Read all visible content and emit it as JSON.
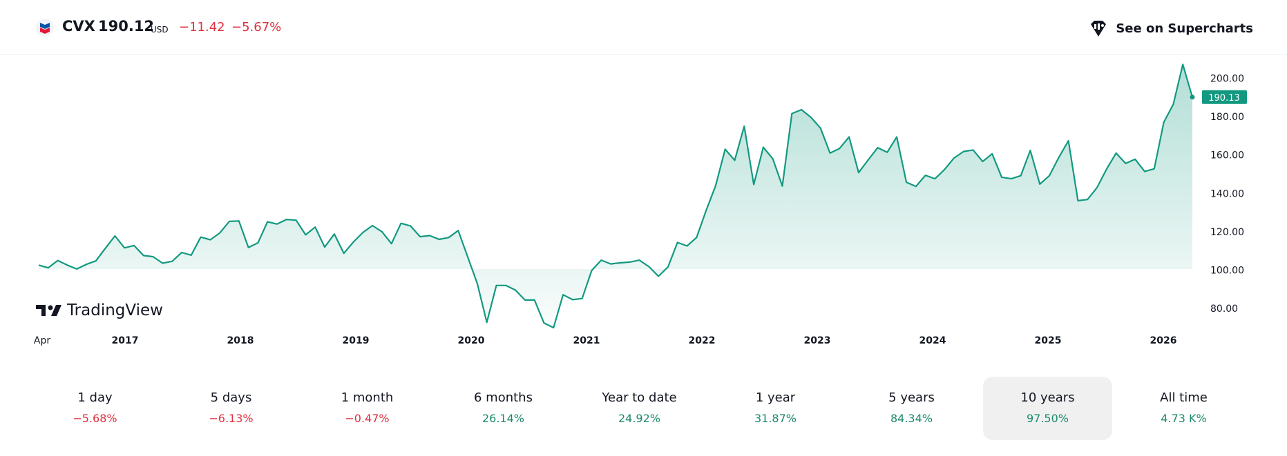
{
  "header": {
    "logo_icon": "chevron-logo-icon",
    "symbol": "CVX",
    "price": "190.12",
    "currency": "USD",
    "change": "−11.42",
    "change_pct": "−5.67%",
    "supercharts_label": "See on Supercharts",
    "supercharts_icon": "tradingview-supercharts-icon"
  },
  "colors": {
    "line": "#129980",
    "negative": "#e0313f",
    "positive": "#1a8a6b",
    "price_tag": "#129980",
    "active_period_bg": "#f0f0f0"
  },
  "chart_data": {
    "type": "area",
    "x_tick_labels": [
      "Apr",
      "2017",
      "2018",
      "2019",
      "2020",
      "2021",
      "2022",
      "2023",
      "2024",
      "2025",
      "2026"
    ],
    "y_tick_labels": [
      "200.00",
      "180.00",
      "160.00",
      "140.00",
      "120.00",
      "100.00",
      "80.00"
    ],
    "ylim": [
      70,
      212
    ],
    "last_price_label": "190.13",
    "watermark": "TradingView",
    "grid": false,
    "series": [
      {
        "values": [
          102.6,
          101.2,
          105.0,
          102.6,
          100.6,
          103.0,
          104.8,
          111.4,
          117.8,
          111.6,
          112.8,
          107.6,
          107.0,
          103.6,
          104.6,
          109.2,
          107.8,
          117.2,
          115.8,
          119.4,
          125.4,
          125.6,
          111.8,
          114.2,
          125.2,
          124.0,
          126.4,
          126.0,
          118.4,
          122.4,
          112.0,
          118.8,
          108.8,
          114.6,
          119.6,
          123.2,
          120.0,
          113.8,
          124.4,
          123.0,
          117.4,
          118.0,
          116.0,
          117.0,
          120.6,
          106.8,
          93.0,
          72.8,
          92.0,
          92.0,
          89.6,
          84.4,
          84.4,
          72.4,
          70.0,
          87.2,
          84.6,
          85.2,
          99.8,
          105.2,
          103.2,
          103.8,
          104.2,
          105.2,
          101.8,
          96.8,
          101.6,
          114.4,
          112.6,
          117.0,
          131.0,
          144.0,
          163.0,
          157.2,
          175.0,
          144.6,
          164.0,
          158.0,
          143.8,
          181.6,
          183.6,
          179.6,
          174.0,
          161.0,
          163.4,
          169.4,
          150.8,
          157.4,
          163.8,
          161.4,
          169.4,
          145.8,
          143.6,
          149.4,
          147.6,
          152.4,
          158.4,
          161.8,
          162.6,
          156.6,
          160.6,
          148.4,
          147.6,
          149.2,
          162.4,
          144.8,
          149.2,
          158.8,
          167.4,
          136.2,
          136.8,
          143.0,
          152.6,
          161.0,
          155.6,
          157.8,
          151.4,
          152.8,
          177.0,
          186.4,
          207.2,
          190.13
        ]
      }
    ]
  },
  "periods": [
    {
      "label": "1 day",
      "value": "−5.68%",
      "sign": "neg"
    },
    {
      "label": "5 days",
      "value": "−6.13%",
      "sign": "neg"
    },
    {
      "label": "1 month",
      "value": "−0.47%",
      "sign": "neg"
    },
    {
      "label": "6 months",
      "value": "26.14%",
      "sign": "pos"
    },
    {
      "label": "Year to date",
      "value": "24.92%",
      "sign": "pos"
    },
    {
      "label": "1 year",
      "value": "31.87%",
      "sign": "pos"
    },
    {
      "label": "5 years",
      "value": "84.34%",
      "sign": "pos"
    },
    {
      "label": "10 years",
      "value": "97.50%",
      "sign": "pos",
      "active": true
    },
    {
      "label": "All time",
      "value": "4.73 K%",
      "sign": "pos"
    }
  ]
}
